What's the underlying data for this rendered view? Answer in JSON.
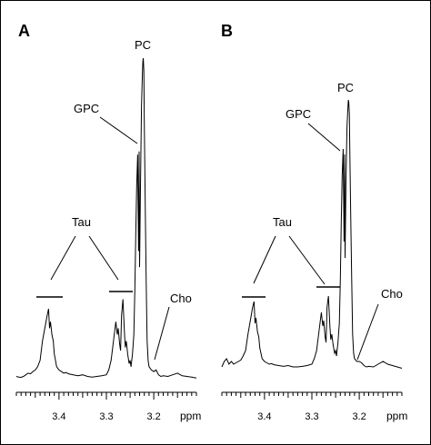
{
  "chart_data": [
    {
      "type": "line",
      "panel_label": "A",
      "xlabel": "ppm",
      "x_reversed": true,
      "xlim": [
        3.49,
        3.11
      ],
      "xticks": [
        3.4,
        3.3,
        3.2
      ],
      "tick_labels": [
        "3.4",
        "3.3",
        "3.2"
      ],
      "ylim": [
        0,
        100
      ],
      "grid": false,
      "peaks": [
        {
          "name": "PC",
          "ppm": 3.222,
          "height": 100
        },
        {
          "name": "GPC",
          "ppm": 3.231,
          "height": 71
        },
        {
          "name": "Cho",
          "ppm": 3.195,
          "height": 3
        },
        {
          "name": "Tau",
          "ppm": 3.42,
          "height": 22
        },
        {
          "name": "Tau",
          "ppm": 3.26,
          "height": 25
        }
      ],
      "annotations": [
        "PC",
        "GPC",
        "Tau",
        "Cho"
      ],
      "series": [
        {
          "x": [
            3.49,
            3.485,
            3.48,
            3.475,
            3.47,
            3.465,
            3.46,
            3.455,
            3.45,
            3.445,
            3.44,
            3.435,
            3.43,
            3.425,
            3.422,
            3.42,
            3.418,
            3.415,
            3.412,
            3.41,
            3.405,
            3.4,
            3.395,
            3.39,
            3.385,
            3.38,
            3.37,
            3.36,
            3.35,
            3.34,
            3.33,
            3.32,
            3.31,
            3.3,
            3.295,
            3.29,
            3.285,
            3.28,
            3.277,
            3.275,
            3.272,
            3.27,
            3.268,
            3.265,
            3.262,
            3.26,
            3.258,
            3.255,
            3.252,
            3.25,
            3.248,
            3.245,
            3.242,
            3.24,
            3.238,
            3.236,
            3.234,
            3.232,
            3.231,
            3.23,
            3.228,
            3.226,
            3.224,
            3.223,
            3.222,
            3.221,
            3.22,
            3.218,
            3.216,
            3.214,
            3.212,
            3.21,
            3.205,
            3.2,
            3.195,
            3.19,
            3.185,
            3.18,
            3.17,
            3.16,
            3.15,
            3.14,
            3.13,
            3.12,
            3.11
          ],
          "y": [
            1,
            0.8,
            0.7,
            1,
            1.5,
            2,
            1.8,
            2.5,
            3,
            4,
            6,
            12,
            16,
            20,
            22,
            16,
            18,
            14,
            12,
            8,
            4,
            3,
            2.5,
            2,
            2.2,
            1.8,
            1.5,
            1.2,
            1.5,
            1,
            0.8,
            1,
            1.2,
            1.5,
            3,
            6,
            12,
            18,
            14,
            16,
            11,
            9,
            20,
            25,
            15,
            10,
            12,
            8,
            5,
            6,
            4,
            8,
            14,
            28,
            45,
            60,
            70,
            40,
            71,
            35,
            60,
            85,
            95,
            99,
            100,
            96,
            80,
            55,
            30,
            12,
            6,
            4,
            3,
            2.5,
            3,
            1.5,
            1,
            1.2,
            1,
            1.5,
            2,
            1.2,
            1,
            0.8,
            0.5
          ]
        }
      ]
    },
    {
      "type": "line",
      "panel_label": "B",
      "xlabel": "ppm",
      "x_reversed": true,
      "xlim": [
        3.49,
        3.11
      ],
      "xticks": [
        3.4,
        3.3,
        3.2
      ],
      "tick_labels": [
        "3.4",
        "3.3",
        "3.2"
      ],
      "ylim": [
        0,
        100
      ],
      "grid": false,
      "peaks": [
        {
          "name": "PC",
          "ppm": 3.222,
          "height": 100
        },
        {
          "name": "GPC",
          "ppm": 3.231,
          "height": 80
        },
        {
          "name": "Cho",
          "ppm": 3.198,
          "height": 4
        },
        {
          "name": "Tau",
          "ppm": 3.42,
          "height": 26
        },
        {
          "name": "Tau",
          "ppm": 3.26,
          "height": 28
        }
      ],
      "annotations": [
        "PC",
        "GPC",
        "Tau",
        "Cho"
      ],
      "series": [
        {
          "x": [
            3.49,
            3.485,
            3.48,
            3.475,
            3.47,
            3.465,
            3.46,
            3.455,
            3.45,
            3.445,
            3.44,
            3.435,
            3.43,
            3.425,
            3.422,
            3.42,
            3.418,
            3.415,
            3.412,
            3.41,
            3.405,
            3.4,
            3.395,
            3.39,
            3.385,
            3.38,
            3.37,
            3.36,
            3.35,
            3.34,
            3.33,
            3.32,
            3.31,
            3.3,
            3.295,
            3.29,
            3.285,
            3.28,
            3.277,
            3.275,
            3.272,
            3.27,
            3.268,
            3.265,
            3.262,
            3.26,
            3.258,
            3.255,
            3.252,
            3.25,
            3.248,
            3.245,
            3.242,
            3.24,
            3.238,
            3.236,
            3.234,
            3.232,
            3.231,
            3.23,
            3.228,
            3.226,
            3.224,
            3.223,
            3.222,
            3.221,
            3.22,
            3.218,
            3.216,
            3.214,
            3.212,
            3.21,
            3.205,
            3.2,
            3.195,
            3.19,
            3.185,
            3.18,
            3.17,
            3.16,
            3.15,
            3.14,
            3.13,
            3.12,
            3.11
          ],
          "y": [
            2,
            4,
            5,
            3,
            4,
            3,
            3.5,
            4,
            4.5,
            6,
            8,
            14,
            19,
            24,
            26,
            18,
            20,
            15,
            13,
            9,
            5,
            4,
            3.5,
            3,
            3.2,
            2.8,
            2.5,
            2.2,
            2.5,
            2,
            2,
            2.2,
            2.5,
            3,
            5,
            8,
            15,
            22,
            17,
            19,
            13,
            11,
            24,
            28,
            17,
            12,
            14,
            10,
            7,
            8,
            6,
            11,
            18,
            34,
            55,
            72,
            82,
            48,
            80,
            42,
            70,
            90,
            97,
            100,
            99,
            95,
            82,
            58,
            34,
            14,
            7,
            5,
            4,
            4,
            3.5,
            2.5,
            2,
            2.2,
            2,
            3,
            4,
            3,
            2.5,
            2,
            1.5
          ]
        }
      ]
    }
  ]
}
